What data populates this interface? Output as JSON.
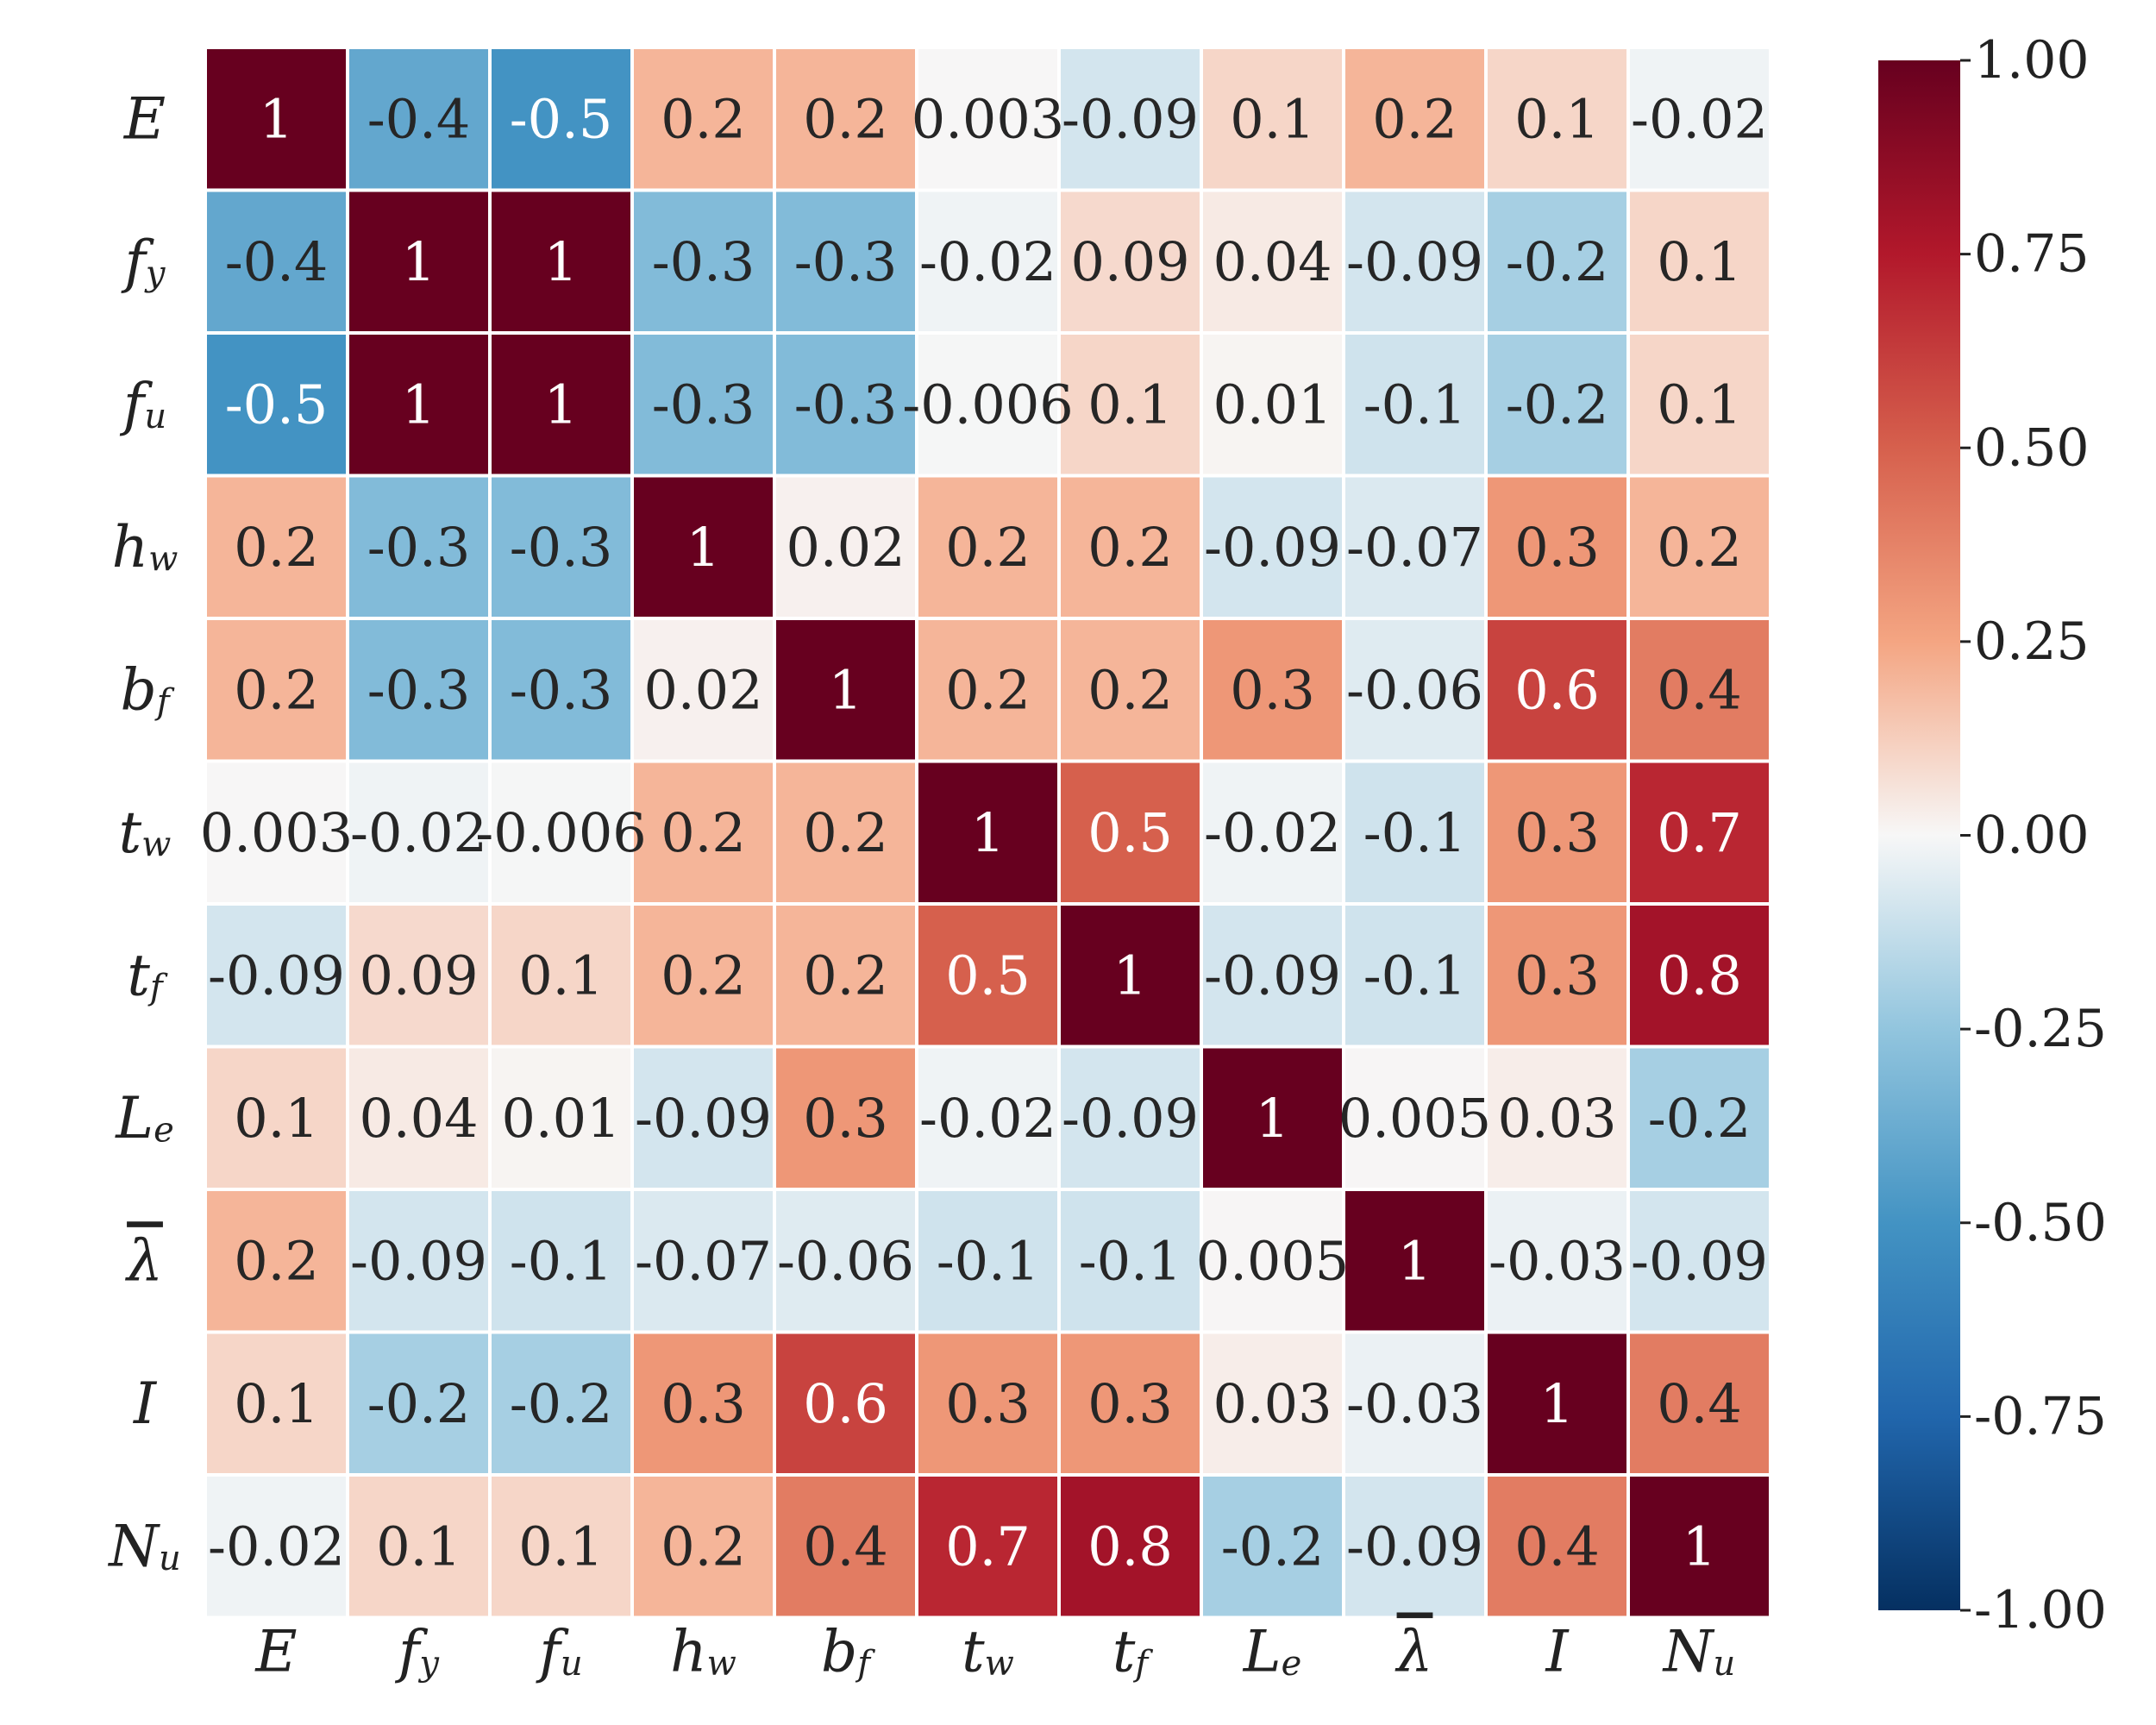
{
  "chart_data": {
    "type": "heatmap",
    "variables": [
      {
        "base": "E",
        "sub": "",
        "bar": false
      },
      {
        "base": "f",
        "sub": "y",
        "bar": false
      },
      {
        "base": "f",
        "sub": "u",
        "bar": false
      },
      {
        "base": "h",
        "sub": "w",
        "bar": false
      },
      {
        "base": "b",
        "sub": "f",
        "bar": false
      },
      {
        "base": "t",
        "sub": "w",
        "bar": false
      },
      {
        "base": "t",
        "sub": "f",
        "bar": false
      },
      {
        "base": "L",
        "sub": "e",
        "bar": false
      },
      {
        "base": "λ",
        "sub": "",
        "bar": true
      },
      {
        "base": "I",
        "sub": "",
        "bar": false
      },
      {
        "base": "N",
        "sub": "u",
        "bar": false
      }
    ],
    "labels": [
      [
        "1",
        "-0.4",
        "-0.5",
        "0.2",
        "0.2",
        "0.003",
        "-0.09",
        "0.1",
        "0.2",
        "0.1",
        "-0.02"
      ],
      [
        "-0.4",
        "1",
        "1",
        "-0.3",
        "-0.3",
        "-0.02",
        "0.09",
        "0.04",
        "-0.09",
        "-0.2",
        "0.1"
      ],
      [
        "-0.5",
        "1",
        "1",
        "-0.3",
        "-0.3",
        "-0.006",
        "0.1",
        "0.01",
        "-0.1",
        "-0.2",
        "0.1"
      ],
      [
        "0.2",
        "-0.3",
        "-0.3",
        "1",
        "0.02",
        "0.2",
        "0.2",
        "-0.09",
        "-0.07",
        "0.3",
        "0.2"
      ],
      [
        "0.2",
        "-0.3",
        "-0.3",
        "0.02",
        "1",
        "0.2",
        "0.2",
        "0.3",
        "-0.06",
        "0.6",
        "0.4"
      ],
      [
        "0.003",
        "-0.02",
        "-0.006",
        "0.2",
        "0.2",
        "1",
        "0.5",
        "-0.02",
        "-0.1",
        "0.3",
        "0.7"
      ],
      [
        "-0.09",
        "0.09",
        "0.1",
        "0.2",
        "0.2",
        "0.5",
        "1",
        "-0.09",
        "-0.1",
        "0.3",
        "0.8"
      ],
      [
        "0.1",
        "0.04",
        "0.01",
        "-0.09",
        "0.3",
        "-0.02",
        "-0.09",
        "1",
        "0.005",
        "0.03",
        "-0.2"
      ],
      [
        "0.2",
        "-0.09",
        "-0.1",
        "-0.07",
        "-0.06",
        "-0.1",
        "-0.1",
        "0.005",
        "1",
        "-0.03",
        "-0.09"
      ],
      [
        "0.1",
        "-0.2",
        "-0.2",
        "0.3",
        "0.6",
        "0.3",
        "0.3",
        "0.03",
        "-0.03",
        "1",
        "0.4"
      ],
      [
        "-0.02",
        "0.1",
        "0.1",
        "0.2",
        "0.4",
        "0.7",
        "0.8",
        "-0.2",
        "-0.09",
        "0.4",
        "1"
      ]
    ],
    "colorbar": {
      "min": -1.0,
      "max": 1.0,
      "ticks": [
        "1.00",
        "0.75",
        "0.50",
        "0.25",
        "0.00",
        "-0.25",
        "-0.50",
        "-0.75",
        "-1.00"
      ],
      "colormap": "RdBu_r"
    }
  }
}
